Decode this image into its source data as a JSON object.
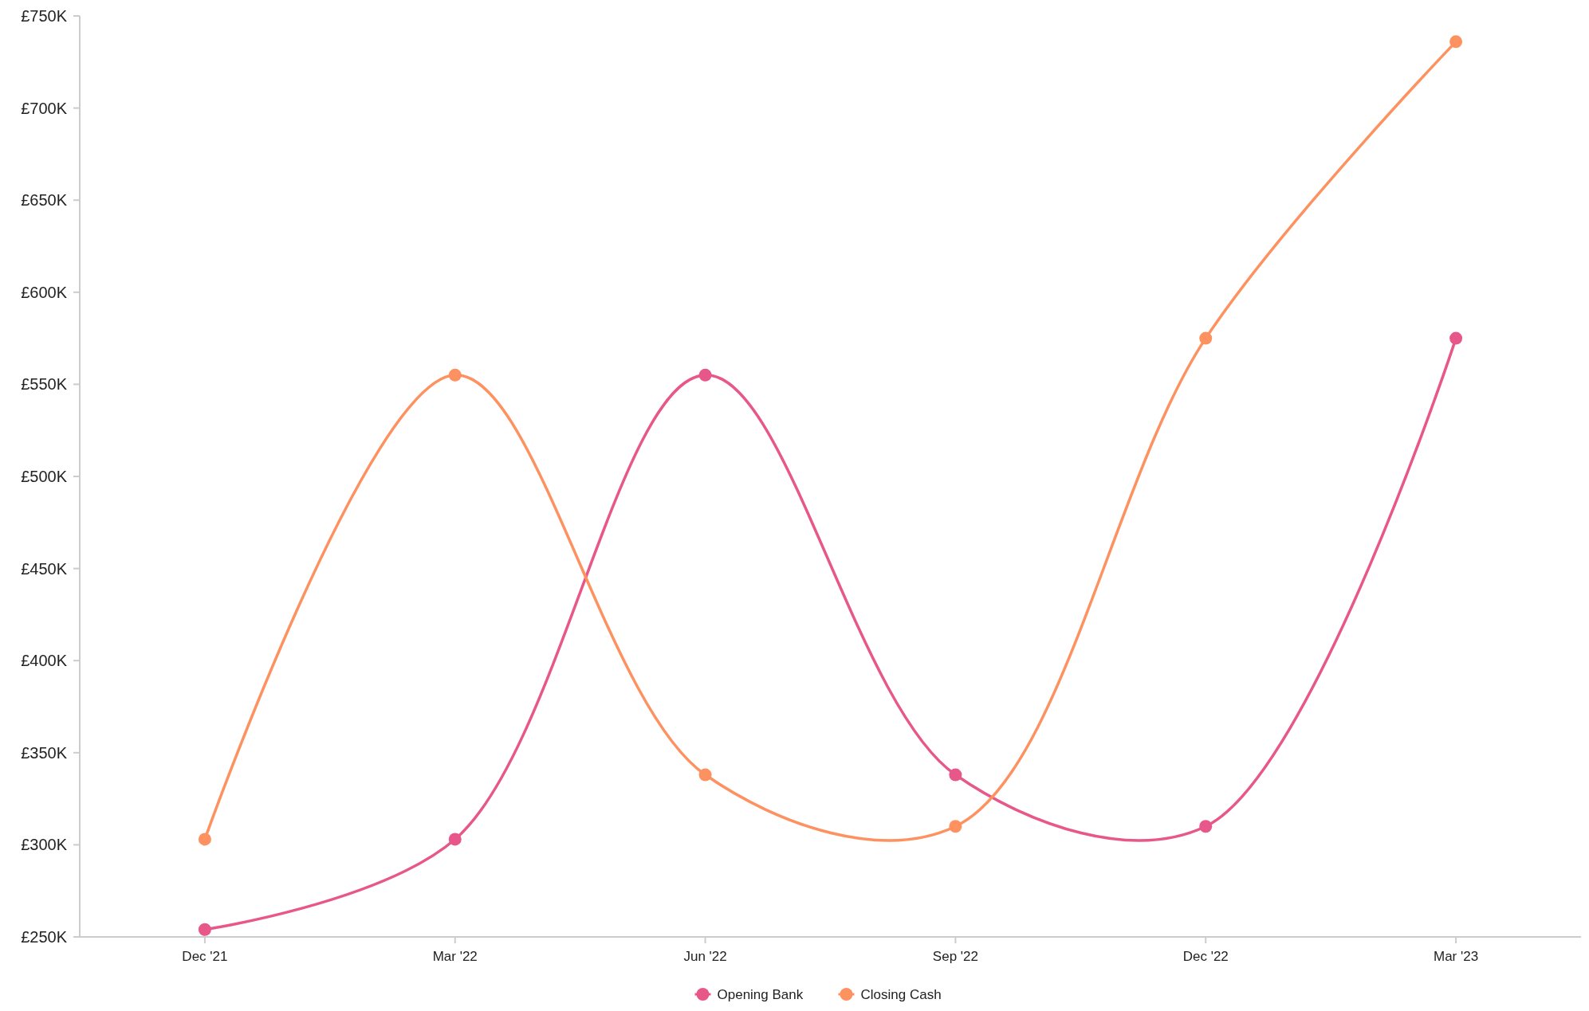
{
  "chart_data": {
    "type": "line",
    "categories": [
      "Dec '21",
      "Mar '22",
      "Jun '22",
      "Sep '22",
      "Dec '22",
      "Mar '23"
    ],
    "series": [
      {
        "name": "Opening Bank",
        "color": "#e8578a",
        "values": [
          254000,
          303000,
          555000,
          338000,
          310000,
          575000
        ]
      },
      {
        "name": "Closing Cash",
        "color": "#fd9160",
        "values": [
          303000,
          555000,
          338000,
          310000,
          575000,
          736000
        ]
      }
    ],
    "ylim": [
      250000,
      750000
    ],
    "yticks": [
      {
        "value": 250000,
        "label": "£250K"
      },
      {
        "value": 300000,
        "label": "£300K"
      },
      {
        "value": 350000,
        "label": "£350K"
      },
      {
        "value": 400000,
        "label": "£400K"
      },
      {
        "value": 450000,
        "label": "£450K"
      },
      {
        "value": 500000,
        "label": "£500K"
      },
      {
        "value": 550000,
        "label": "£550K"
      },
      {
        "value": 600000,
        "label": "£600K"
      },
      {
        "value": 650000,
        "label": "£650K"
      },
      {
        "value": 700000,
        "label": "£700K"
      },
      {
        "value": 750000,
        "label": "£750K"
      }
    ],
    "grid": false,
    "legend": "bottom",
    "marker": "circle",
    "line_style": "solid"
  }
}
